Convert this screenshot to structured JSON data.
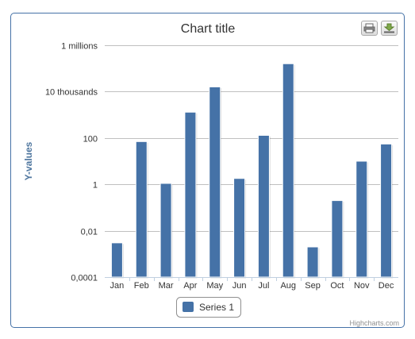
{
  "chart_data": {
    "type": "bar",
    "title": "Chart title",
    "xlabel": "",
    "ylabel": "Y-values",
    "yscale": "log",
    "ylim": [
      0.0001,
      1000000
    ],
    "y_ticks": [
      {
        "value": 1000000,
        "label": "1 millions"
      },
      {
        "value": 10000,
        "label": "10 thousands"
      },
      {
        "value": 100,
        "label": "100"
      },
      {
        "value": 1,
        "label": "1"
      },
      {
        "value": 0.01,
        "label": "0,01"
      },
      {
        "value": 0.0001,
        "label": "0,0001"
      }
    ],
    "categories": [
      "Jan",
      "Feb",
      "Mar",
      "Apr",
      "May",
      "Jun",
      "Jul",
      "Aug",
      "Sep",
      "Oct",
      "Nov",
      "Dec"
    ],
    "series": [
      {
        "name": "Series 1",
        "color": "#4572a7",
        "values": [
          0.003,
          70,
          1.1,
          1300,
          16000,
          1.8,
          130,
          160000,
          0.002,
          0.2,
          10,
          55
        ]
      }
    ],
    "grid": true,
    "legend": "bottom-center"
  },
  "credits": "Highcharts.com",
  "toolbar": {
    "print_icon": "printer-icon",
    "export_icon": "download-icon"
  }
}
